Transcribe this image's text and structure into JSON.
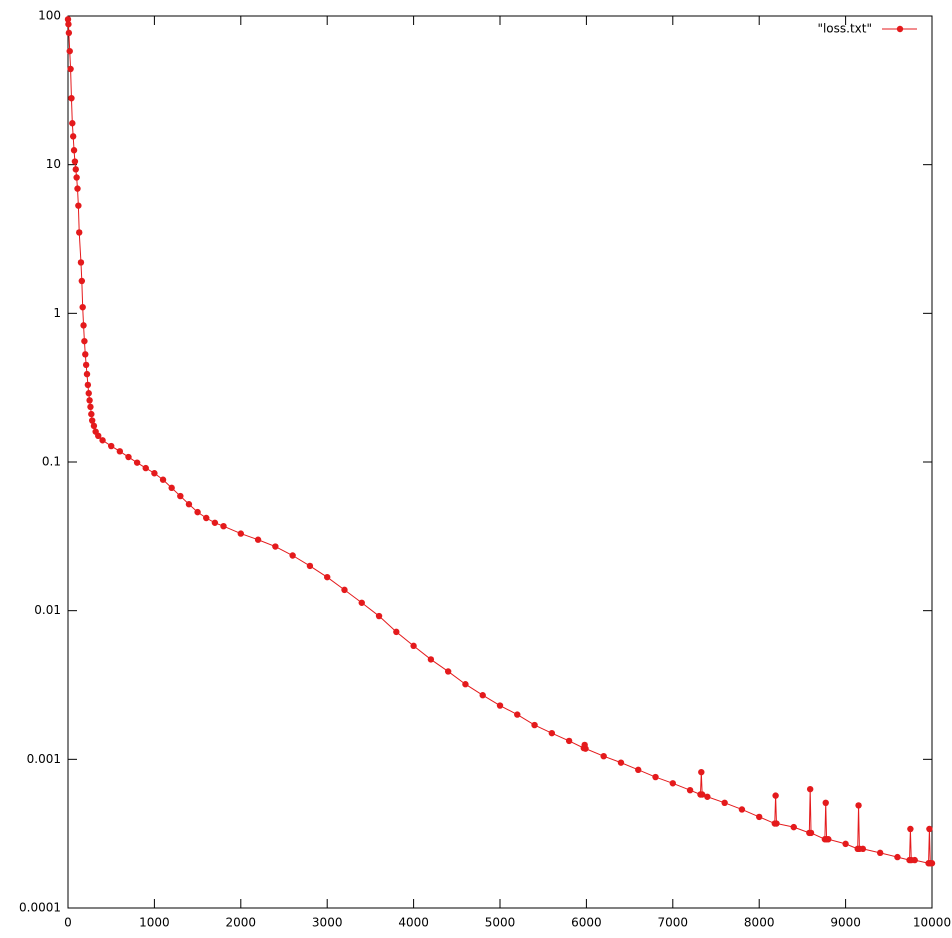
{
  "chart_data": {
    "type": "line",
    "x": [
      0,
      5,
      10,
      20,
      30,
      40,
      50,
      60,
      70,
      80,
      90,
      100,
      110,
      120,
      130,
      150,
      160,
      170,
      180,
      190,
      200,
      210,
      220,
      230,
      240,
      250,
      260,
      270,
      280,
      300,
      320,
      350,
      400,
      500,
      600,
      700,
      800,
      900,
      1000,
      1100,
      1200,
      1300,
      1400,
      1500,
      1600,
      1700,
      1800,
      2000,
      2200,
      2400,
      2600,
      2800,
      3000,
      3200,
      3400,
      3600,
      3800,
      4000,
      4200,
      4400,
      4600,
      4800,
      5000,
      5200,
      5400,
      5600,
      5800,
      5970,
      5980,
      5990,
      6200,
      6400,
      6600,
      6800,
      7000,
      7200,
      7320,
      7330,
      7340,
      7400,
      7600,
      7800,
      8000,
      8180,
      8190,
      8200,
      8400,
      8580,
      8590,
      8600,
      8760,
      8770,
      8780,
      8800,
      9000,
      9140,
      9150,
      9160,
      9200,
      9400,
      9600,
      9740,
      9750,
      9760,
      9800,
      9960,
      9970,
      9980,
      10000
    ],
    "series": [
      {
        "name": "\"loss.txt\"",
        "color": "#e41a1c",
        "values": [
          95,
          88,
          77,
          58,
          44,
          28,
          19,
          15.5,
          12.5,
          10.5,
          9.3,
          8.2,
          6.9,
          5.3,
          3.5,
          2.2,
          1.65,
          1.1,
          0.83,
          0.65,
          0.53,
          0.45,
          0.39,
          0.33,
          0.29,
          0.26,
          0.235,
          0.21,
          0.19,
          0.175,
          0.16,
          0.15,
          0.14,
          0.128,
          0.118,
          0.108,
          0.099,
          0.091,
          0.084,
          0.076,
          0.067,
          0.059,
          0.052,
          0.046,
          0.042,
          0.039,
          0.037,
          0.033,
          0.03,
          0.027,
          0.0235,
          0.02,
          0.0168,
          0.0138,
          0.0113,
          0.0092,
          0.0072,
          0.0058,
          0.0047,
          0.0039,
          0.0032,
          0.0027,
          0.0023,
          0.002,
          0.0017,
          0.0015,
          0.00133,
          0.00119,
          0.00125,
          0.00118,
          0.00105,
          0.00095,
          0.00085,
          0.00076,
          0.00069,
          0.00062,
          0.00058,
          0.00082,
          0.00058,
          0.00056,
          0.00051,
          0.00046,
          0.00041,
          0.00037,
          0.00057,
          0.00037,
          0.00035,
          0.00032,
          0.00063,
          0.00032,
          0.00029,
          0.00051,
          0.00029,
          0.00029,
          0.00027,
          0.00025,
          0.00049,
          0.00025,
          0.00025,
          0.000235,
          0.00022,
          0.00021,
          0.00034,
          0.00021,
          0.00021,
          0.0002,
          0.00034,
          0.0002,
          0.0002
        ]
      }
    ],
    "xlim": [
      0,
      10000
    ],
    "xticks": [
      0,
      1000,
      2000,
      3000,
      4000,
      5000,
      6000,
      7000,
      8000,
      9000,
      10000
    ],
    "ylim": [
      0.0001,
      100
    ],
    "yticks": [
      0.0001,
      0.001,
      0.01,
      0.1,
      1,
      10,
      100
    ],
    "log_y": true,
    "legend": "top-right"
  }
}
